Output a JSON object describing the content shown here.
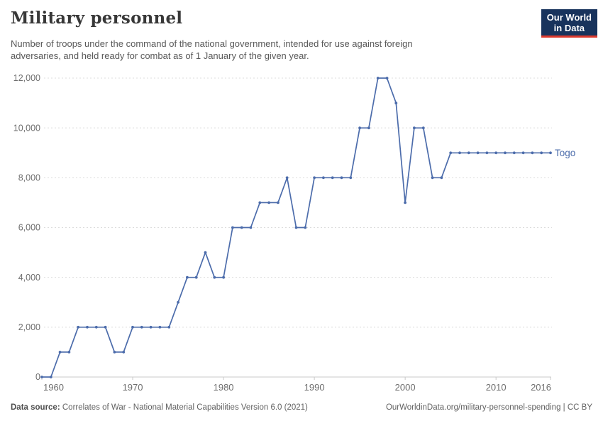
{
  "header": {
    "title": "Military personnel",
    "subtitle_line1": "Number of troops under the command of the national government, intended for use against foreign",
    "subtitle_line2": "adversaries, and held ready for combat as of 1 January of the given year.",
    "logo": {
      "line1": "Our World",
      "line2": "in Data"
    }
  },
  "chart_data": {
    "type": "line",
    "title": "Military personnel",
    "series": [
      {
        "name": "Togo",
        "x": [
          1960,
          1961,
          1962,
          1963,
          1964,
          1965,
          1966,
          1967,
          1968,
          1969,
          1970,
          1971,
          1972,
          1973,
          1974,
          1975,
          1976,
          1977,
          1978,
          1979,
          1980,
          1981,
          1982,
          1983,
          1984,
          1985,
          1986,
          1987,
          1988,
          1989,
          1990,
          1991,
          1992,
          1993,
          1994,
          1995,
          1996,
          1997,
          1998,
          1999,
          2000,
          2001,
          2002,
          2003,
          2004,
          2005,
          2006,
          2007,
          2008,
          2009,
          2010,
          2011,
          2012,
          2013,
          2014,
          2015,
          2016
        ],
        "values": [
          0,
          0,
          1000,
          1000,
          2000,
          2000,
          2000,
          2000,
          1000,
          1000,
          2000,
          2000,
          2000,
          2000,
          2000,
          3000,
          4000,
          4000,
          5000,
          4000,
          4000,
          6000,
          6000,
          6000,
          7000,
          7000,
          7000,
          8000,
          6000,
          6000,
          8000,
          8000,
          8000,
          8000,
          8000,
          10000,
          10000,
          12000,
          12000,
          11000,
          7000,
          10000,
          10000,
          8000,
          8000,
          9000,
          9000,
          9000,
          9000,
          9000,
          9000,
          9000,
          9000,
          9000,
          9000,
          9000,
          9000
        ]
      }
    ],
    "xlabel": "",
    "ylabel": "",
    "xlim": [
      1960,
      2016
    ],
    "ylim": [
      0,
      12000
    ],
    "x_ticks": [
      1960,
      1970,
      1980,
      1990,
      2000,
      2010,
      2016
    ],
    "x_tick_labels": [
      "1960",
      "1970",
      "1980",
      "1990",
      "2000",
      "2010",
      "2016"
    ],
    "y_ticks": [
      0,
      2000,
      4000,
      6000,
      8000,
      10000,
      12000
    ],
    "y_tick_labels": [
      "0",
      "2,000",
      "4,000",
      "6,000",
      "8,000",
      "10,000",
      "12,000"
    ],
    "grid": "horizontal dashed",
    "legend_position": "end-of-line label",
    "end_label": "Togo"
  },
  "footer": {
    "source_label": "Data source:",
    "source_text": " Correlates of War - National Material Capabilities Version 6.0 (2021)",
    "right_text": "OurWorldinData.org/military-personnel-spending | CC BY"
  },
  "colors": {
    "accent": "#4c6cab",
    "grid": "#dcdcdc",
    "axis": "#c9c9c9",
    "tick_text": "#6e6e6e",
    "logo_bg": "#18335c",
    "logo_red": "#dc3a2e"
  }
}
